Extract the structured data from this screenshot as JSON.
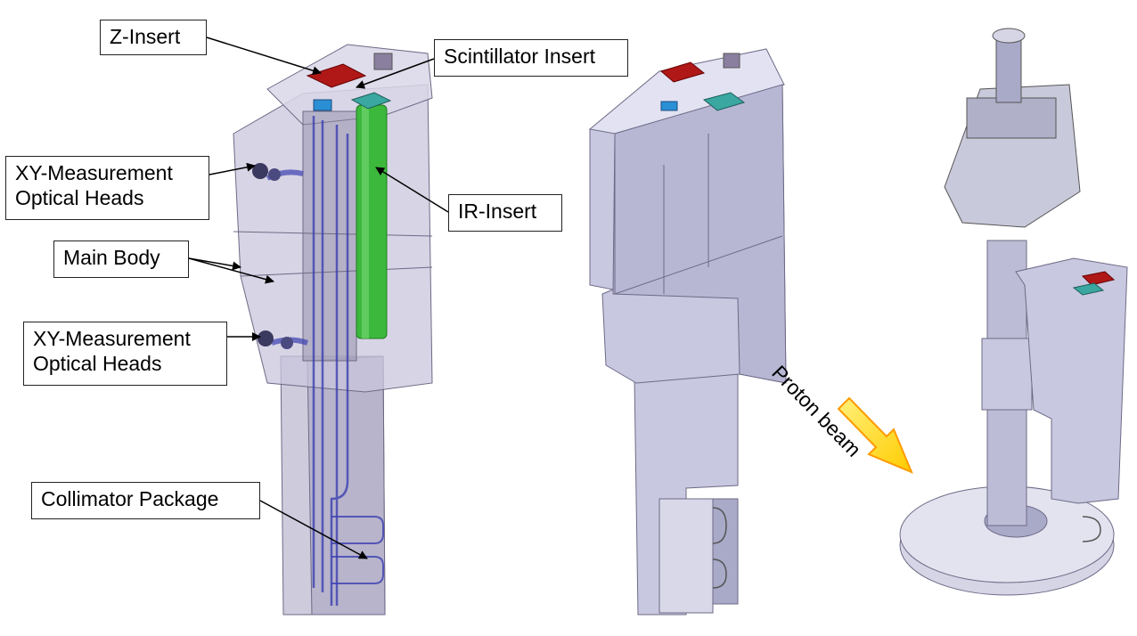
{
  "labels": {
    "z_insert": "Z-Insert",
    "scintillator_insert": "Scintillator Insert",
    "xy_heads_upper": "XY-Measurement\nOptical Heads",
    "ir_insert": "IR-Insert",
    "main_body": "Main Body",
    "xy_heads_lower": "XY-Measurement\nOptical Heads",
    "collimator_package": "Collimator Package",
    "proton_beam": "Proton beam"
  },
  "colors": {
    "transparent_body": "#c9c6dc",
    "body_edge": "#6e6a86",
    "solid_body": "#c8c8e0",
    "solid_body_dark": "#a9a9c8",
    "solid_body_light": "#e2e2f2",
    "z_insert": "#b01818",
    "ir_insert": "#3cb83c",
    "scintillator_insert": "#3aa7a0",
    "blue_channel": "#3b3fb0",
    "beam_arrow_fill": "#ffd200",
    "beam_arrow_edge": "#ff9a00"
  },
  "icons": {
    "beam_arrow": "down-right-arrow"
  }
}
